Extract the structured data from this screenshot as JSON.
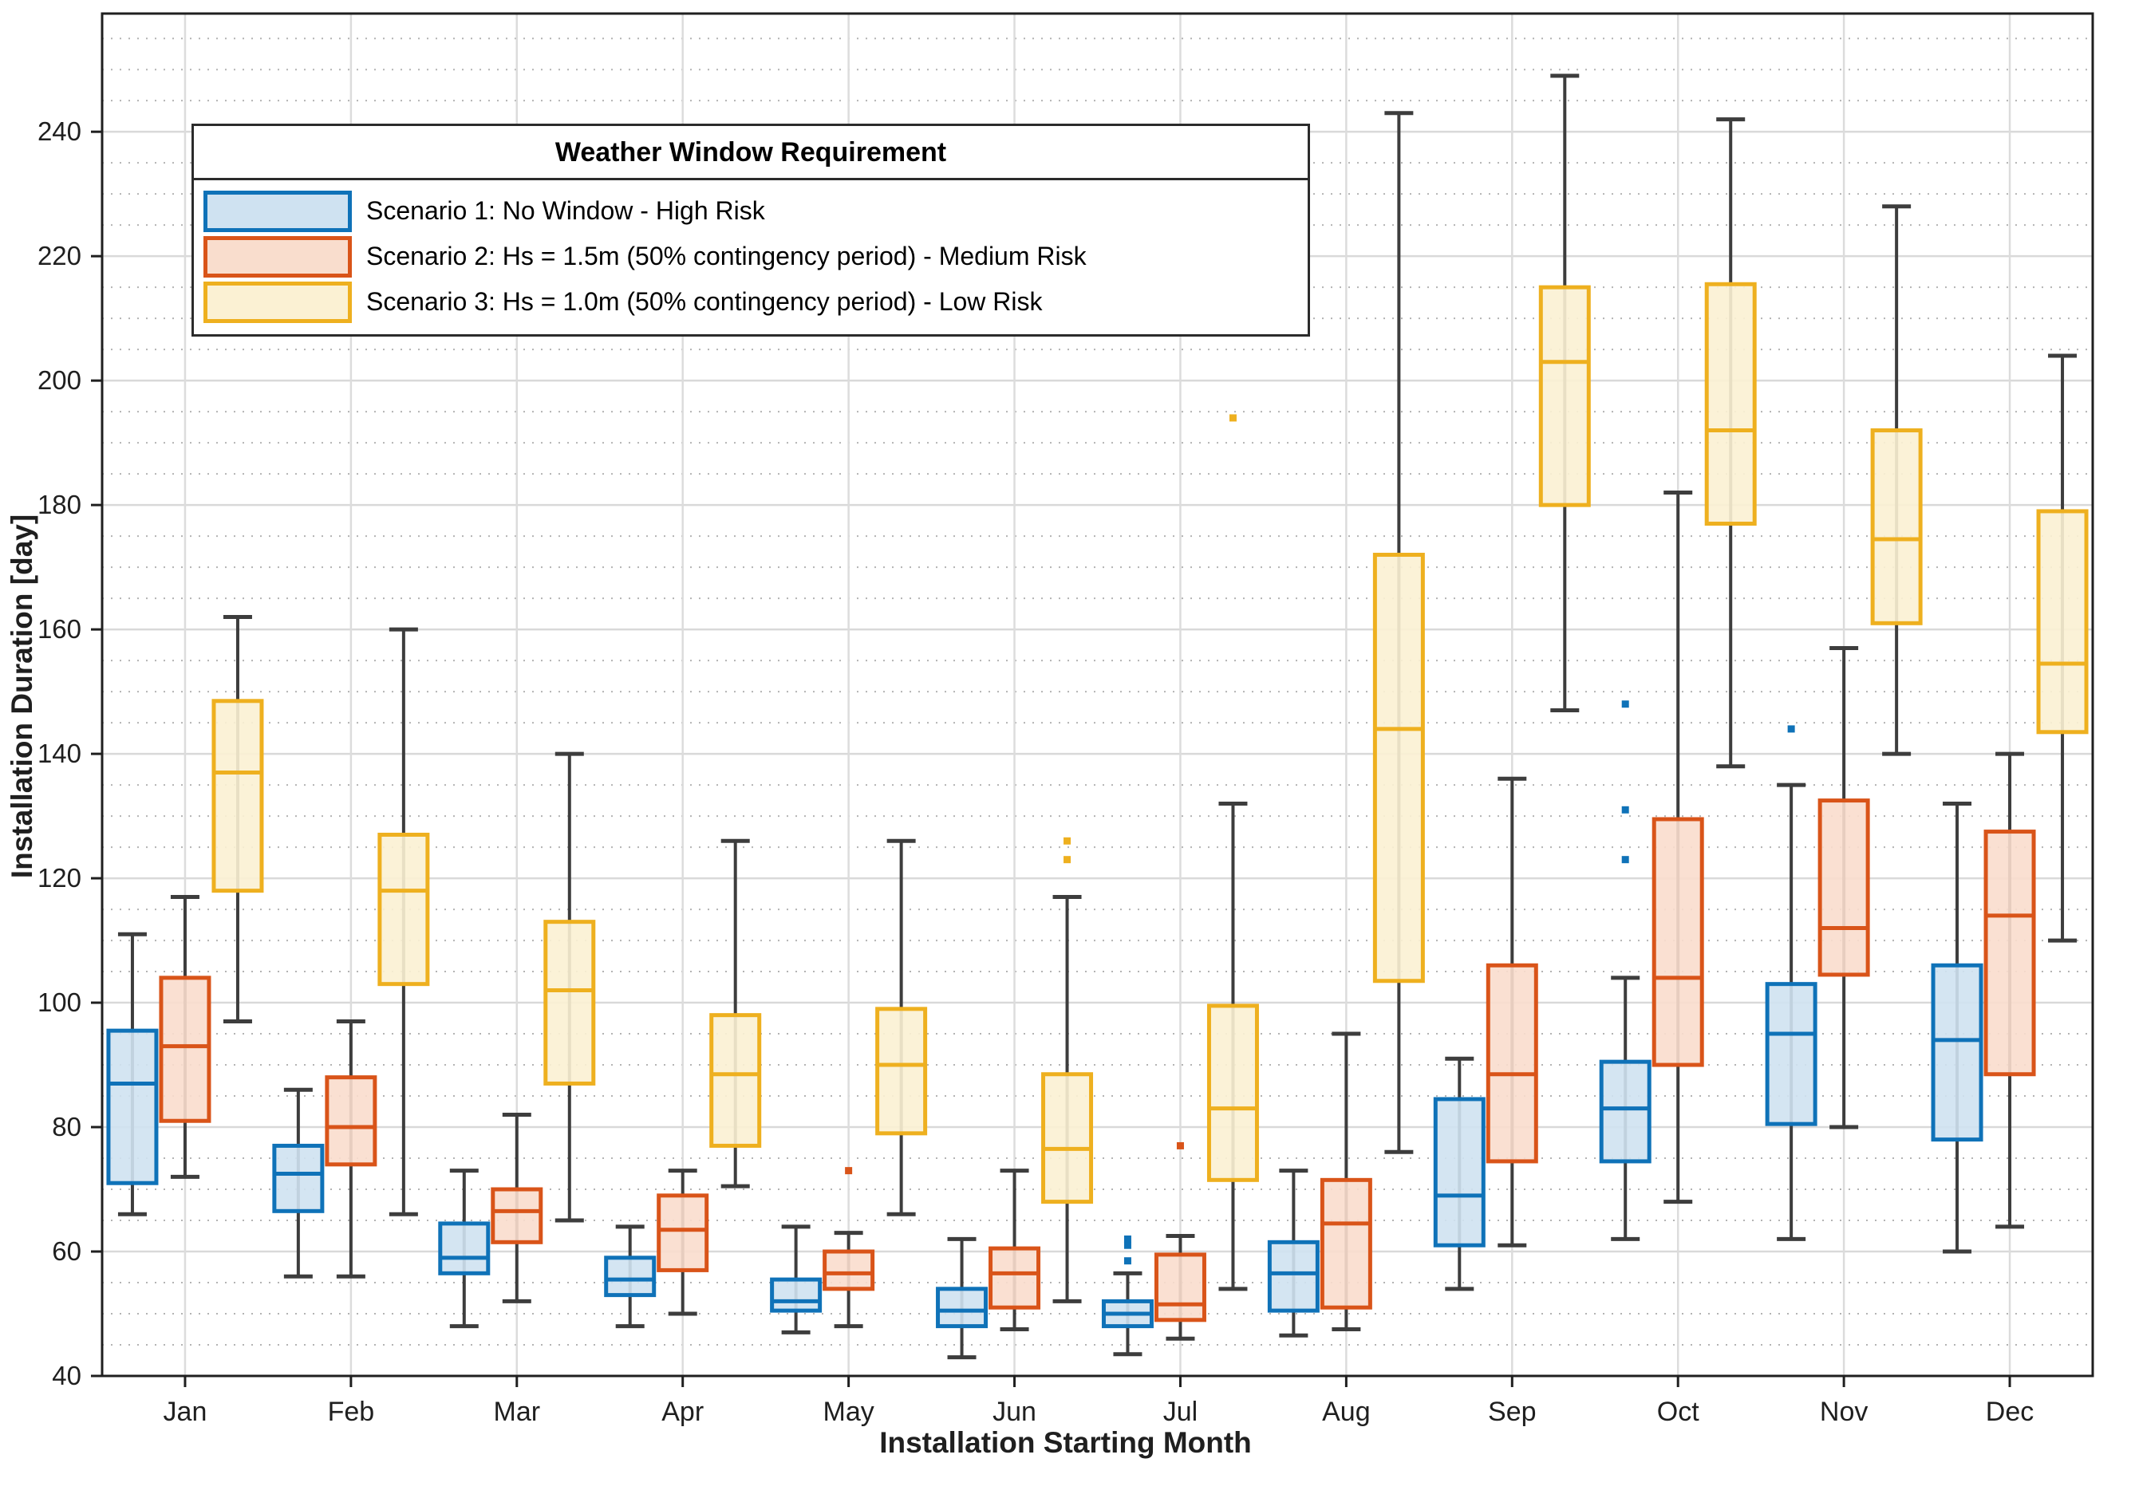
{
  "chart_data": {
    "type": "boxplot",
    "title": "",
    "xlabel": "Installation Starting Month",
    "ylabel": "Installation Duration [day]",
    "categories": [
      "Jan",
      "Feb",
      "Mar",
      "Apr",
      "May",
      "Jun",
      "Jul",
      "Aug",
      "Sep",
      "Oct",
      "Nov",
      "Dec"
    ],
    "y_axis": {
      "min": 40,
      "max": 259,
      "ticks": [
        40,
        60,
        80,
        100,
        120,
        140,
        160,
        180,
        200,
        220,
        240
      ],
      "minor_step": 5,
      "grid": "on"
    },
    "legend": {
      "title": "Weather Window Requirement",
      "position": "top-left-inside",
      "entries": [
        {
          "label": "Scenario 1: No Window - High Risk",
          "series": 0
        },
        {
          "label": "Scenario 2: Hs = 1.5m (50% contingency period) - Medium Risk",
          "series": 1
        },
        {
          "label": "Scenario 3: Hs = 1.0m (50% contingency period) - Low Risk",
          "series": 2
        }
      ]
    },
    "series": [
      {
        "name": "Scenario 1: No Window - High Risk",
        "edge_color": "#0f72b8",
        "fill_color": "#cfe2f1",
        "boxes": [
          {
            "low": 66,
            "q1": 71,
            "med": 87,
            "q3": 95.5,
            "high": 111,
            "outliers": []
          },
          {
            "low": 56,
            "q1": 66.5,
            "med": 72.5,
            "q3": 77,
            "high": 86,
            "outliers": []
          },
          {
            "low": 48,
            "q1": 56.5,
            "med": 59,
            "q3": 64.5,
            "high": 73,
            "outliers": []
          },
          {
            "low": 48,
            "q1": 53,
            "med": 55.5,
            "q3": 59,
            "high": 64,
            "outliers": []
          },
          {
            "low": 47,
            "q1": 50.5,
            "med": 52,
            "q3": 55.5,
            "high": 64,
            "outliers": []
          },
          {
            "low": 43,
            "q1": 48,
            "med": 50.5,
            "q3": 54,
            "high": 62,
            "outliers": []
          },
          {
            "low": 43.5,
            "q1": 48,
            "med": 50,
            "q3": 52,
            "high": 56.5,
            "outliers": [
              58.5,
              61,
              62
            ]
          },
          {
            "low": 46.5,
            "q1": 50.5,
            "med": 56.5,
            "q3": 61.5,
            "high": 73,
            "outliers": []
          },
          {
            "low": 54,
            "q1": 61,
            "med": 69,
            "q3": 84.5,
            "high": 91,
            "outliers": []
          },
          {
            "low": 62,
            "q1": 74.5,
            "med": 83,
            "q3": 90.5,
            "high": 104,
            "outliers": [
              123,
              131,
              148
            ]
          },
          {
            "low": 62,
            "q1": 80.5,
            "med": 95,
            "q3": 103,
            "high": 135,
            "outliers": [
              144
            ]
          },
          {
            "low": 60,
            "q1": 78,
            "med": 94,
            "q3": 106,
            "high": 132,
            "outliers": []
          }
        ]
      },
      {
        "name": "Scenario 2: Hs = 1.5m (50% contingency period) - Medium Risk",
        "edge_color": "#d95419",
        "fill_color": "#f9ddcd",
        "boxes": [
          {
            "low": 72,
            "q1": 81,
            "med": 93,
            "q3": 104,
            "high": 117,
            "outliers": []
          },
          {
            "low": 56,
            "q1": 74,
            "med": 80,
            "q3": 88,
            "high": 97,
            "outliers": []
          },
          {
            "low": 52,
            "q1": 61.5,
            "med": 66.5,
            "q3": 70,
            "high": 82,
            "outliers": []
          },
          {
            "low": 50,
            "q1": 57,
            "med": 63.5,
            "q3": 69,
            "high": 73,
            "outliers": []
          },
          {
            "low": 48,
            "q1": 54,
            "med": 56.5,
            "q3": 60,
            "high": 63,
            "outliers": [
              73
            ]
          },
          {
            "low": 47.5,
            "q1": 51,
            "med": 56.5,
            "q3": 60.5,
            "high": 73,
            "outliers": []
          },
          {
            "low": 46,
            "q1": 49,
            "med": 51.5,
            "q3": 59.5,
            "high": 62.5,
            "outliers": [
              77
            ]
          },
          {
            "low": 47.5,
            "q1": 51,
            "med": 64.5,
            "q3": 71.5,
            "high": 95,
            "outliers": []
          },
          {
            "low": 61,
            "q1": 74.5,
            "med": 88.5,
            "q3": 106,
            "high": 136,
            "outliers": []
          },
          {
            "low": 68,
            "q1": 90,
            "med": 104,
            "q3": 129.5,
            "high": 182,
            "outliers": []
          },
          {
            "low": 80,
            "q1": 104.5,
            "med": 112,
            "q3": 132.5,
            "high": 157,
            "outliers": []
          },
          {
            "low": 64,
            "q1": 88.5,
            "med": 114,
            "q3": 127.5,
            "high": 140,
            "outliers": []
          }
        ]
      },
      {
        "name": "Scenario 3: Hs = 1.0m (50% contingency period) - Low Risk",
        "edge_color": "#eeb01f",
        "fill_color": "#fbf1d3",
        "boxes": [
          {
            "low": 97,
            "q1": 118,
            "med": 137,
            "q3": 148.5,
            "high": 162,
            "outliers": []
          },
          {
            "low": 66,
            "q1": 103,
            "med": 118,
            "q3": 127,
            "high": 160,
            "outliers": []
          },
          {
            "low": 65,
            "q1": 87,
            "med": 102,
            "q3": 113,
            "high": 140,
            "outliers": []
          },
          {
            "low": 70.5,
            "q1": 77,
            "med": 88.5,
            "q3": 98,
            "high": 126,
            "outliers": []
          },
          {
            "low": 66,
            "q1": 79,
            "med": 90,
            "q3": 99,
            "high": 126,
            "outliers": []
          },
          {
            "low": 52,
            "q1": 68,
            "med": 76.5,
            "q3": 88.5,
            "high": 117,
            "outliers": [
              123,
              126
            ]
          },
          {
            "low": 54,
            "q1": 71.5,
            "med": 83,
            "q3": 99.5,
            "high": 132,
            "outliers": [
              194
            ]
          },
          {
            "low": 76,
            "q1": 103.5,
            "med": 144,
            "q3": 172,
            "high": 243,
            "outliers": []
          },
          {
            "low": 147,
            "q1": 180,
            "med": 203,
            "q3": 215,
            "high": 249,
            "outliers": []
          },
          {
            "low": 138,
            "q1": 177,
            "med": 192,
            "q3": 215.5,
            "high": 242,
            "outliers": []
          },
          {
            "low": 140,
            "q1": 161,
            "med": 174.5,
            "q3": 192,
            "high": 228,
            "outliers": []
          },
          {
            "low": 110,
            "q1": 143.5,
            "med": 154.5,
            "q3": 179,
            "high": 204,
            "outliers": []
          }
        ]
      }
    ]
  },
  "colors": {
    "grid_major": "#d9d9d9",
    "grid_minor": "#b3b3b3",
    "grid_vertical": "#dcdcdc",
    "axis": "#1f1f1f",
    "whisker": "#3d3d3d",
    "tick_text": "#1f1f1f",
    "background": "#ffffff"
  }
}
